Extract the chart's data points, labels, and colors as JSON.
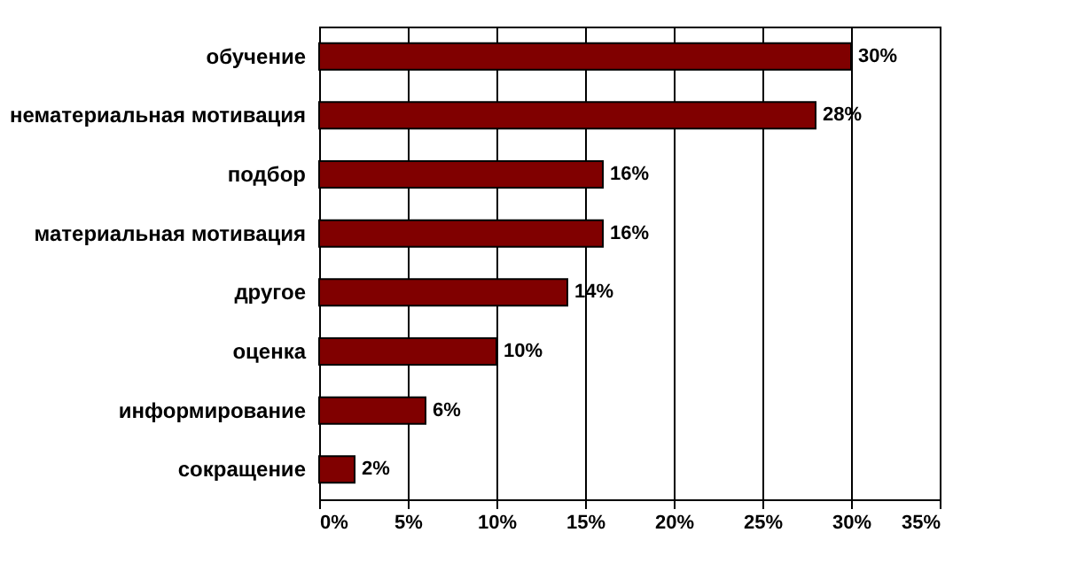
{
  "chart_data": {
    "type": "bar",
    "orientation": "horizontal",
    "categories": [
      "обучение",
      "нематериальная мотивация",
      "подбор",
      "материальная мотивация",
      "другое",
      "оценка",
      "информирование",
      "сокращение"
    ],
    "values": [
      30,
      28,
      16,
      16,
      14,
      10,
      6,
      2
    ],
    "value_labels": [
      "30%",
      "28%",
      "16%",
      "16%",
      "14%",
      "10%",
      "6%",
      "2%"
    ],
    "color": "#800000",
    "xlim": [
      0,
      35
    ],
    "xticks": [
      {
        "value": 0,
        "label": "0%"
      },
      {
        "value": 5,
        "label": "5%"
      },
      {
        "value": 10,
        "label": "10%"
      },
      {
        "value": 15,
        "label": "15%"
      },
      {
        "value": 20,
        "label": "20%"
      },
      {
        "value": 25,
        "label": "25%"
      },
      {
        "value": 30,
        "label": "30%"
      },
      {
        "value": 35,
        "label": "35%"
      }
    ],
    "grid": "x"
  }
}
